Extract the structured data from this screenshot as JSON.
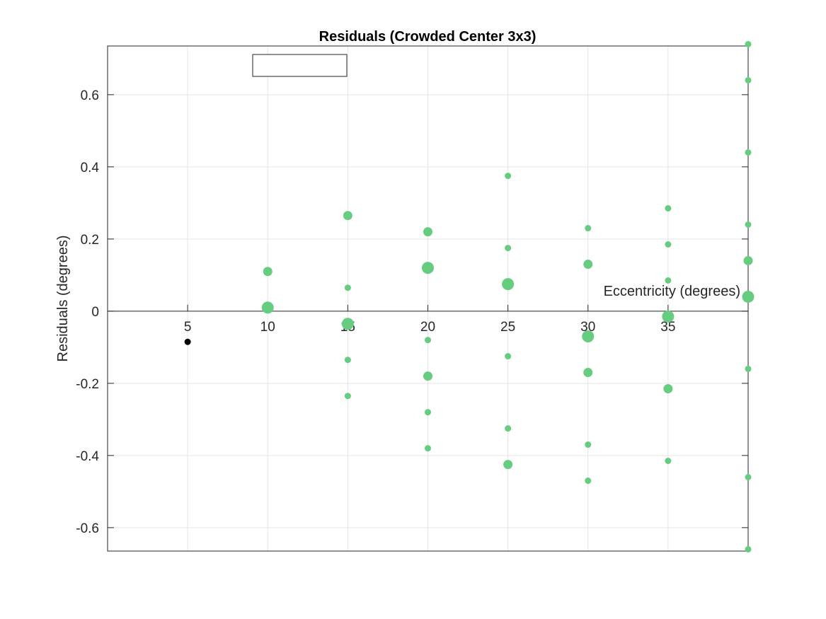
{
  "chart_data": {
    "type": "scatter",
    "title": "Residuals (Crowded Center 3x3)",
    "xlabel": "Eccentricity (degrees)",
    "ylabel": "Residuals (degrees)",
    "xlim": [
      0,
      40
    ],
    "ylim": [
      -0.665,
      0.735
    ],
    "xticks": [
      5,
      10,
      15,
      20,
      25,
      30,
      35
    ],
    "xtick_labels": [
      "5",
      "10",
      "15",
      "20",
      "25",
      "30",
      "35"
    ],
    "yticks": [
      -0.6,
      -0.4,
      -0.2,
      0,
      0.2,
      0.4,
      0.6
    ],
    "ytick_labels": [
      "-0.6",
      "-0.4",
      "-0.2",
      "0",
      "0.2",
      "0.4",
      "0.6"
    ],
    "grid": true,
    "legend": "empty box, top-left",
    "colors": {
      "series": "#66cc80",
      "reference": "#000000"
    },
    "series": [
      {
        "points": [
          {
            "x": 5,
            "y": -0.085,
            "size": "small",
            "color": "#000000"
          },
          {
            "x": 10,
            "y": 0.11,
            "size": "medium"
          },
          {
            "x": 10,
            "y": 0.01,
            "size": "large"
          },
          {
            "x": 15,
            "y": 0.265,
            "size": "medium"
          },
          {
            "x": 15,
            "y": 0.065,
            "size": "small"
          },
          {
            "x": 15,
            "y": -0.035,
            "size": "large"
          },
          {
            "x": 15,
            "y": -0.135,
            "size": "small"
          },
          {
            "x": 15,
            "y": -0.235,
            "size": "small"
          },
          {
            "x": 20,
            "y": 0.22,
            "size": "medium"
          },
          {
            "x": 20,
            "y": 0.12,
            "size": "large"
          },
          {
            "x": 20,
            "y": -0.08,
            "size": "small"
          },
          {
            "x": 20,
            "y": -0.18,
            "size": "medium"
          },
          {
            "x": 20,
            "y": -0.28,
            "size": "small"
          },
          {
            "x": 20,
            "y": -0.38,
            "size": "small"
          },
          {
            "x": 25,
            "y": 0.375,
            "size": "small"
          },
          {
            "x": 25,
            "y": 0.175,
            "size": "small"
          },
          {
            "x": 25,
            "y": 0.075,
            "size": "large"
          },
          {
            "x": 25,
            "y": -0.125,
            "size": "small"
          },
          {
            "x": 25,
            "y": -0.325,
            "size": "small"
          },
          {
            "x": 25,
            "y": -0.425,
            "size": "medium"
          },
          {
            "x": 30,
            "y": 0.23,
            "size": "small"
          },
          {
            "x": 30,
            "y": 0.13,
            "size": "medium"
          },
          {
            "x": 30,
            "y": -0.07,
            "size": "large"
          },
          {
            "x": 30,
            "y": -0.17,
            "size": "medium"
          },
          {
            "x": 30,
            "y": -0.37,
            "size": "small"
          },
          {
            "x": 30,
            "y": -0.47,
            "size": "small"
          },
          {
            "x": 35,
            "y": 0.285,
            "size": "small"
          },
          {
            "x": 35,
            "y": 0.185,
            "size": "small"
          },
          {
            "x": 35,
            "y": 0.085,
            "size": "small"
          },
          {
            "x": 35,
            "y": -0.015,
            "size": "large"
          },
          {
            "x": 35,
            "y": -0.215,
            "size": "medium"
          },
          {
            "x": 35,
            "y": -0.415,
            "size": "small"
          },
          {
            "x": 40,
            "y": 0.74,
            "size": "small"
          },
          {
            "x": 40,
            "y": 0.64,
            "size": "small"
          },
          {
            "x": 40,
            "y": 0.44,
            "size": "small"
          },
          {
            "x": 40,
            "y": 0.24,
            "size": "small"
          },
          {
            "x": 40,
            "y": 0.14,
            "size": "medium"
          },
          {
            "x": 40,
            "y": 0.04,
            "size": "large"
          },
          {
            "x": 40,
            "y": -0.16,
            "size": "small"
          },
          {
            "x": 40,
            "y": -0.46,
            "size": "small"
          },
          {
            "x": 40,
            "y": -0.66,
            "size": "small"
          }
        ]
      }
    ]
  }
}
